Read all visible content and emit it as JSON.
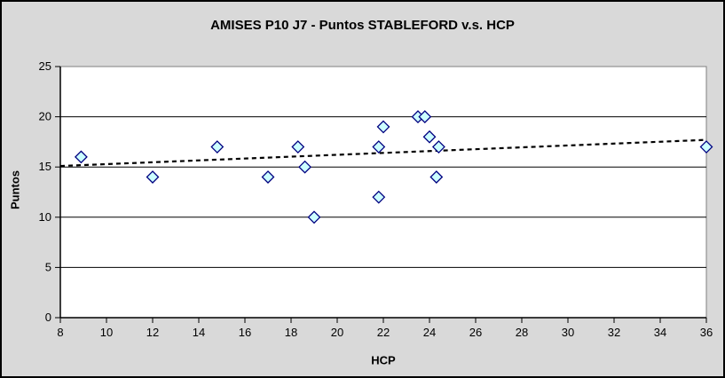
{
  "chart": {
    "colors": {
      "background": "#D9D9D9",
      "outer_border": "#000000",
      "plot_bg": "#FFFFFF",
      "plot_border": "#808080",
      "gridline": "#000000",
      "axis": "#000000",
      "marker_fill": "#CCFFFF",
      "marker_stroke": "#000080",
      "trendline": "#000000",
      "text": "#000000"
    }
  },
  "chart_data": {
    "type": "scatter",
    "title": "AMISES P10 J7 - Puntos STABLEFORD v.s. HCP",
    "xlabel": "HCP",
    "ylabel": "Puntos",
    "xlim": [
      8,
      36
    ],
    "ylim": [
      0,
      25
    ],
    "x_ticks": [
      8,
      10,
      12,
      14,
      16,
      18,
      20,
      22,
      24,
      26,
      28,
      30,
      32,
      34,
      36
    ],
    "y_ticks": [
      0,
      5,
      10,
      15,
      20,
      25
    ],
    "grid": "horizontal-only",
    "legend": "none",
    "series": [
      {
        "name": "Puntos STABLEFORD",
        "marker": "diamond",
        "points": [
          {
            "x": 8.9,
            "y": 16
          },
          {
            "x": 12,
            "y": 14
          },
          {
            "x": 14.8,
            "y": 17
          },
          {
            "x": 17,
            "y": 14
          },
          {
            "x": 18.3,
            "y": 17
          },
          {
            "x": 18.6,
            "y": 15
          },
          {
            "x": 19,
            "y": 10
          },
          {
            "x": 21.8,
            "y": 12
          },
          {
            "x": 21.8,
            "y": 17
          },
          {
            "x": 22,
            "y": 19
          },
          {
            "x": 23.5,
            "y": 20
          },
          {
            "x": 23.8,
            "y": 20
          },
          {
            "x": 24,
            "y": 18
          },
          {
            "x": 24.3,
            "y": 14
          },
          {
            "x": 24.4,
            "y": 17
          },
          {
            "x": 36,
            "y": 17
          }
        ]
      }
    ],
    "trendline": {
      "style": "dashed",
      "x1": 8,
      "y1": 15.1,
      "x2": 36,
      "y2": 17.7
    }
  }
}
